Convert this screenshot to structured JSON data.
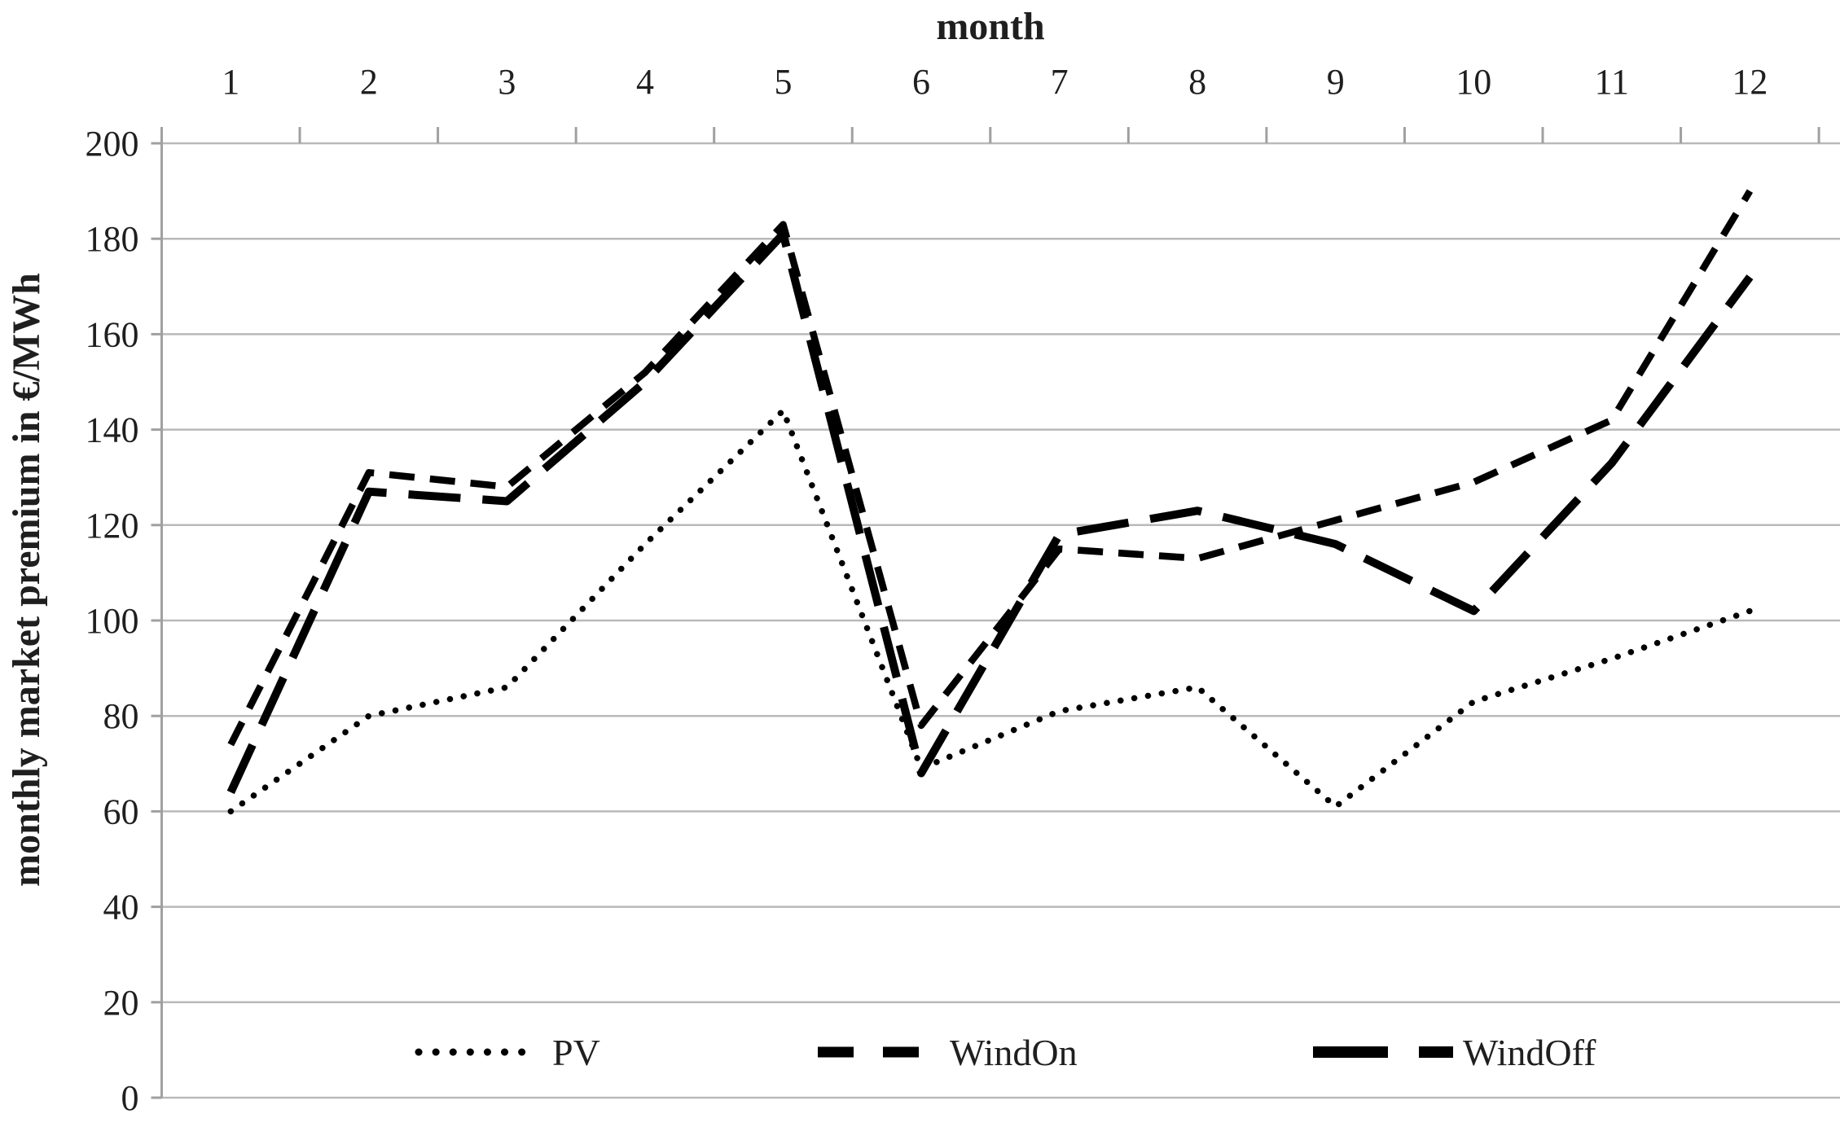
{
  "page": {
    "background": "#ffffff"
  },
  "chart_data": {
    "type": "line",
    "title": "",
    "xlabel": "month",
    "ylabel": "monthly market premium in €/MWh",
    "categories": [
      "1",
      "2",
      "3",
      "4",
      "5",
      "6",
      "7",
      "8",
      "9",
      "10",
      "11",
      "12"
    ],
    "yticks": [
      "0",
      "20",
      "40",
      "60",
      "80",
      "100",
      "120",
      "140",
      "160",
      "180",
      "200"
    ],
    "ylim": [
      0,
      200
    ],
    "ytick_step": 20,
    "grid": "horizontal gridlines on, vertical off",
    "x_axis_position": "top",
    "legend_position": "bottom inside plot",
    "series": [
      {
        "name": "PV",
        "line_style": "dotted",
        "values": [
          60,
          80,
          86,
          116,
          144,
          69,
          81,
          86,
          61,
          83,
          92,
          102
        ]
      },
      {
        "name": "WindOn",
        "line_style": "dashed",
        "values": [
          74,
          131,
          128,
          152,
          183,
          78,
          115,
          113,
          121,
          129,
          142,
          190
        ]
      },
      {
        "name": "WindOff",
        "line_style": "long-dash",
        "values": [
          64,
          127,
          125,
          150,
          181,
          68,
          118,
          123,
          116,
          102,
          133,
          172
        ]
      }
    ],
    "colors": {
      "line": "#000000",
      "grid": "#b9b9b9",
      "axis": "#a0a0a0",
      "text": "#1f1f1f"
    }
  }
}
